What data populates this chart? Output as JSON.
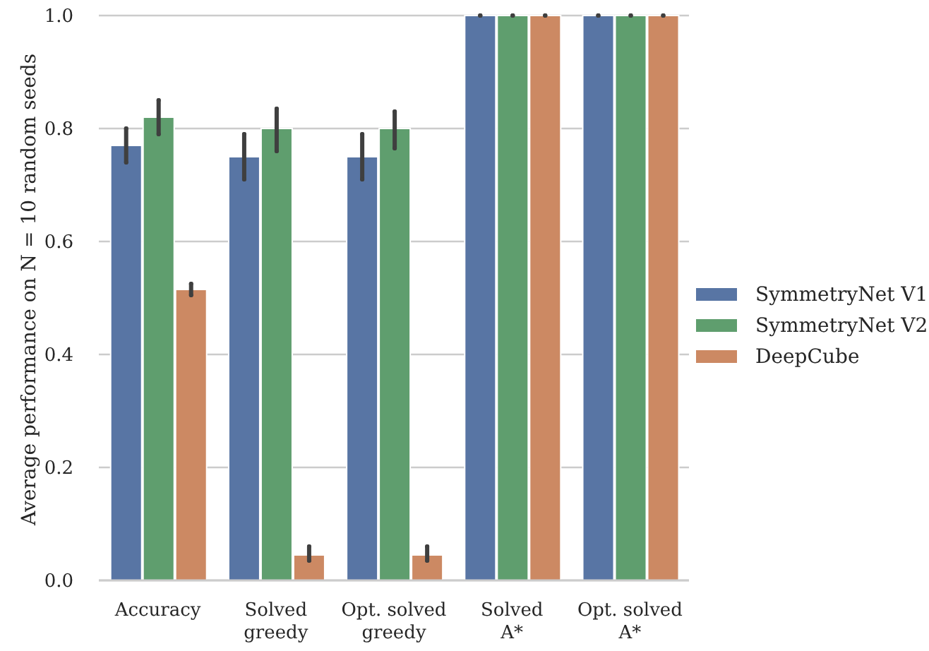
{
  "chart_data": {
    "type": "bar",
    "ylabel": "Average performance on N = 10 random seeds",
    "categories": [
      "Accuracy",
      "Solved\ngreedy",
      "Opt. solved\ngreedy",
      "Solved\nA*",
      "Opt. solved\nA*"
    ],
    "series": [
      {
        "name": "SymmetryNet V1",
        "color": "#5875a4",
        "values": [
          0.77,
          0.75,
          0.75,
          1,
          1
        ],
        "errors": [
          [
            0.74,
            0.8
          ],
          [
            0.71,
            0.79
          ],
          [
            0.71,
            0.79
          ],
          0,
          0
        ]
      },
      {
        "name": "SymmetryNet V2",
        "color": "#5f9e6e",
        "values": [
          0.82,
          0.8,
          0.8,
          1,
          1
        ],
        "errors": [
          [
            0.79,
            0.85
          ],
          [
            0.76,
            0.835
          ],
          [
            0.765,
            0.83
          ],
          0,
          0
        ]
      },
      {
        "name": "DeepCube",
        "color": "#cc8963",
        "values": [
          0.515,
          0.045,
          0.045,
          1,
          1
        ],
        "errors": [
          [
            0.505,
            0.525
          ],
          [
            0.035,
            0.06
          ],
          [
            0.035,
            0.06
          ],
          0,
          0
        ]
      }
    ],
    "ylim": [
      0,
      1
    ],
    "yticks": [
      {
        "value": 0,
        "label": "0.0"
      },
      0.2,
      0.4,
      0.6,
      0.8,
      {
        "value": 1,
        "label": "1.0"
      }
    ],
    "grid": "y",
    "legend": "right"
  }
}
